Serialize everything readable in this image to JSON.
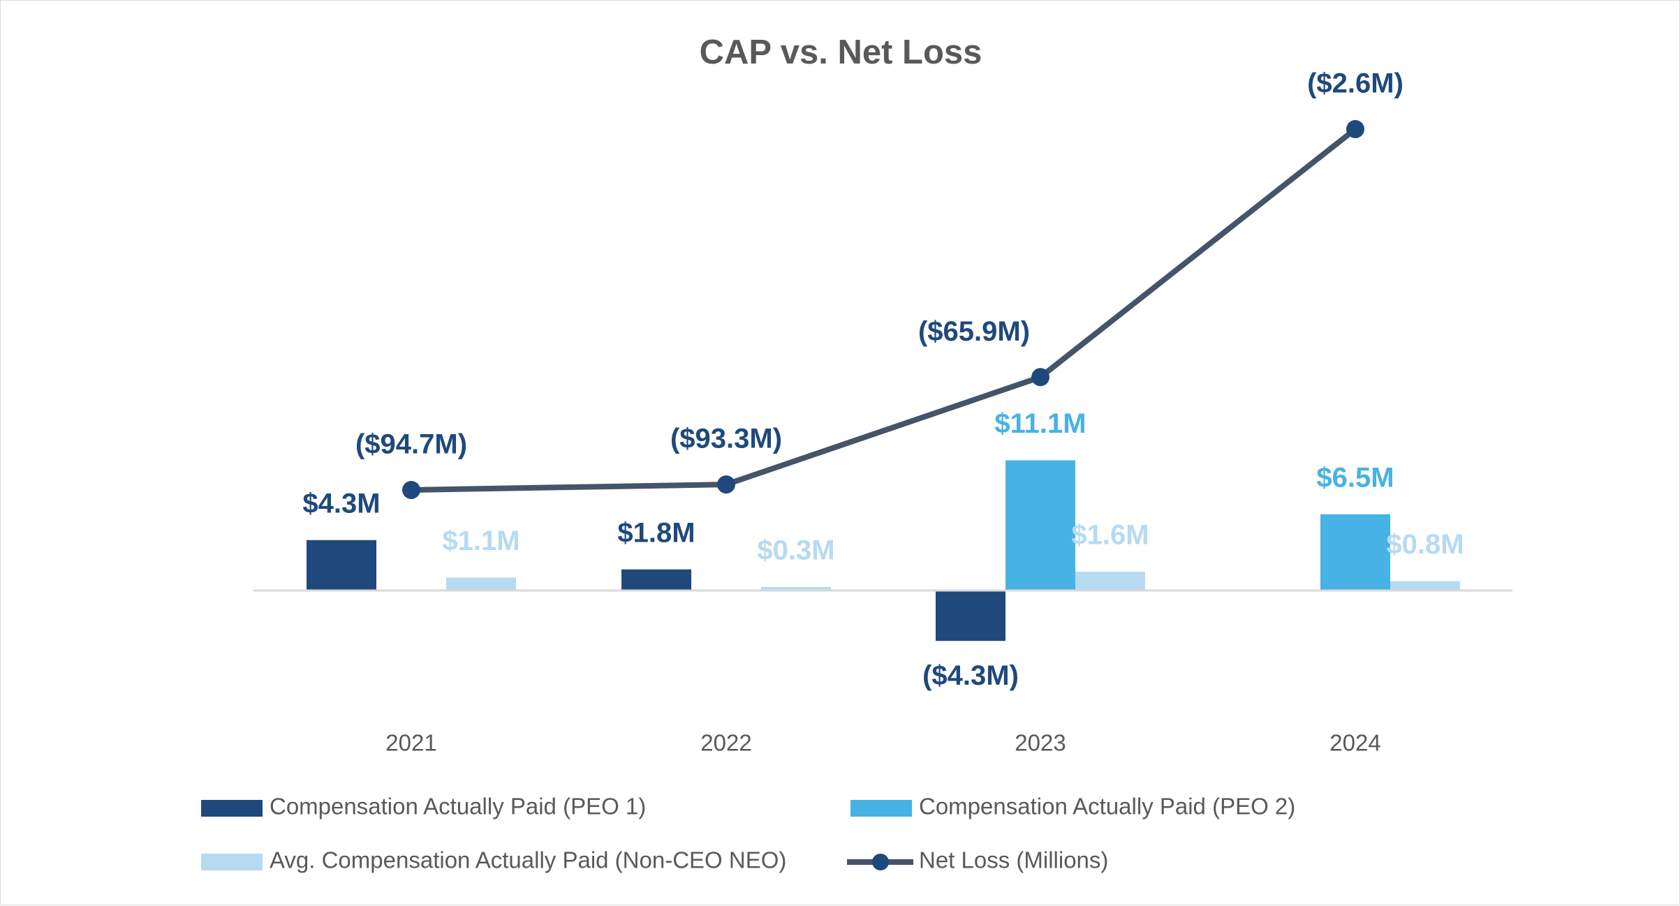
{
  "chart_data": {
    "type": "bar+line",
    "title": "CAP vs. Net Loss",
    "categories": [
      "2021",
      "2022",
      "2023",
      "2024"
    ],
    "series": [
      {
        "name": "Compensation Actually Paid (PEO 1)",
        "kind": "bar",
        "color": "#1F497D",
        "values": [
          4.3,
          1.8,
          -4.3,
          null
        ],
        "labels": [
          "$4.3M",
          "$1.8M",
          "($4.3M)",
          ""
        ]
      },
      {
        "name": "Compensation Actually Paid (PEO 2)",
        "kind": "bar",
        "color": "#47B2E4",
        "values": [
          null,
          null,
          11.1,
          6.5
        ],
        "labels": [
          "",
          "",
          "$11.1M",
          "$6.5M"
        ]
      },
      {
        "name": "Avg. Compensation Actually Paid (Non-CEO NEO)",
        "kind": "bar",
        "color": "#B6DAF2",
        "values": [
          1.1,
          0.3,
          1.6,
          0.8
        ],
        "labels": [
          "$1.1M",
          "$0.3M",
          "$1.6M",
          "$0.8M"
        ]
      },
      {
        "name": "Net Loss (Millions)",
        "kind": "line",
        "axis": "secondary",
        "color": "#44546A",
        "marker_color": "#1F497D",
        "values": [
          -94.7,
          -93.3,
          -65.9,
          -2.6
        ],
        "labels": [
          "($94.7M)",
          "($93.3M)",
          "($65.9M)",
          "($2.6M)"
        ]
      }
    ],
    "legend": "bottom",
    "grid": false,
    "axes_visible": false
  }
}
